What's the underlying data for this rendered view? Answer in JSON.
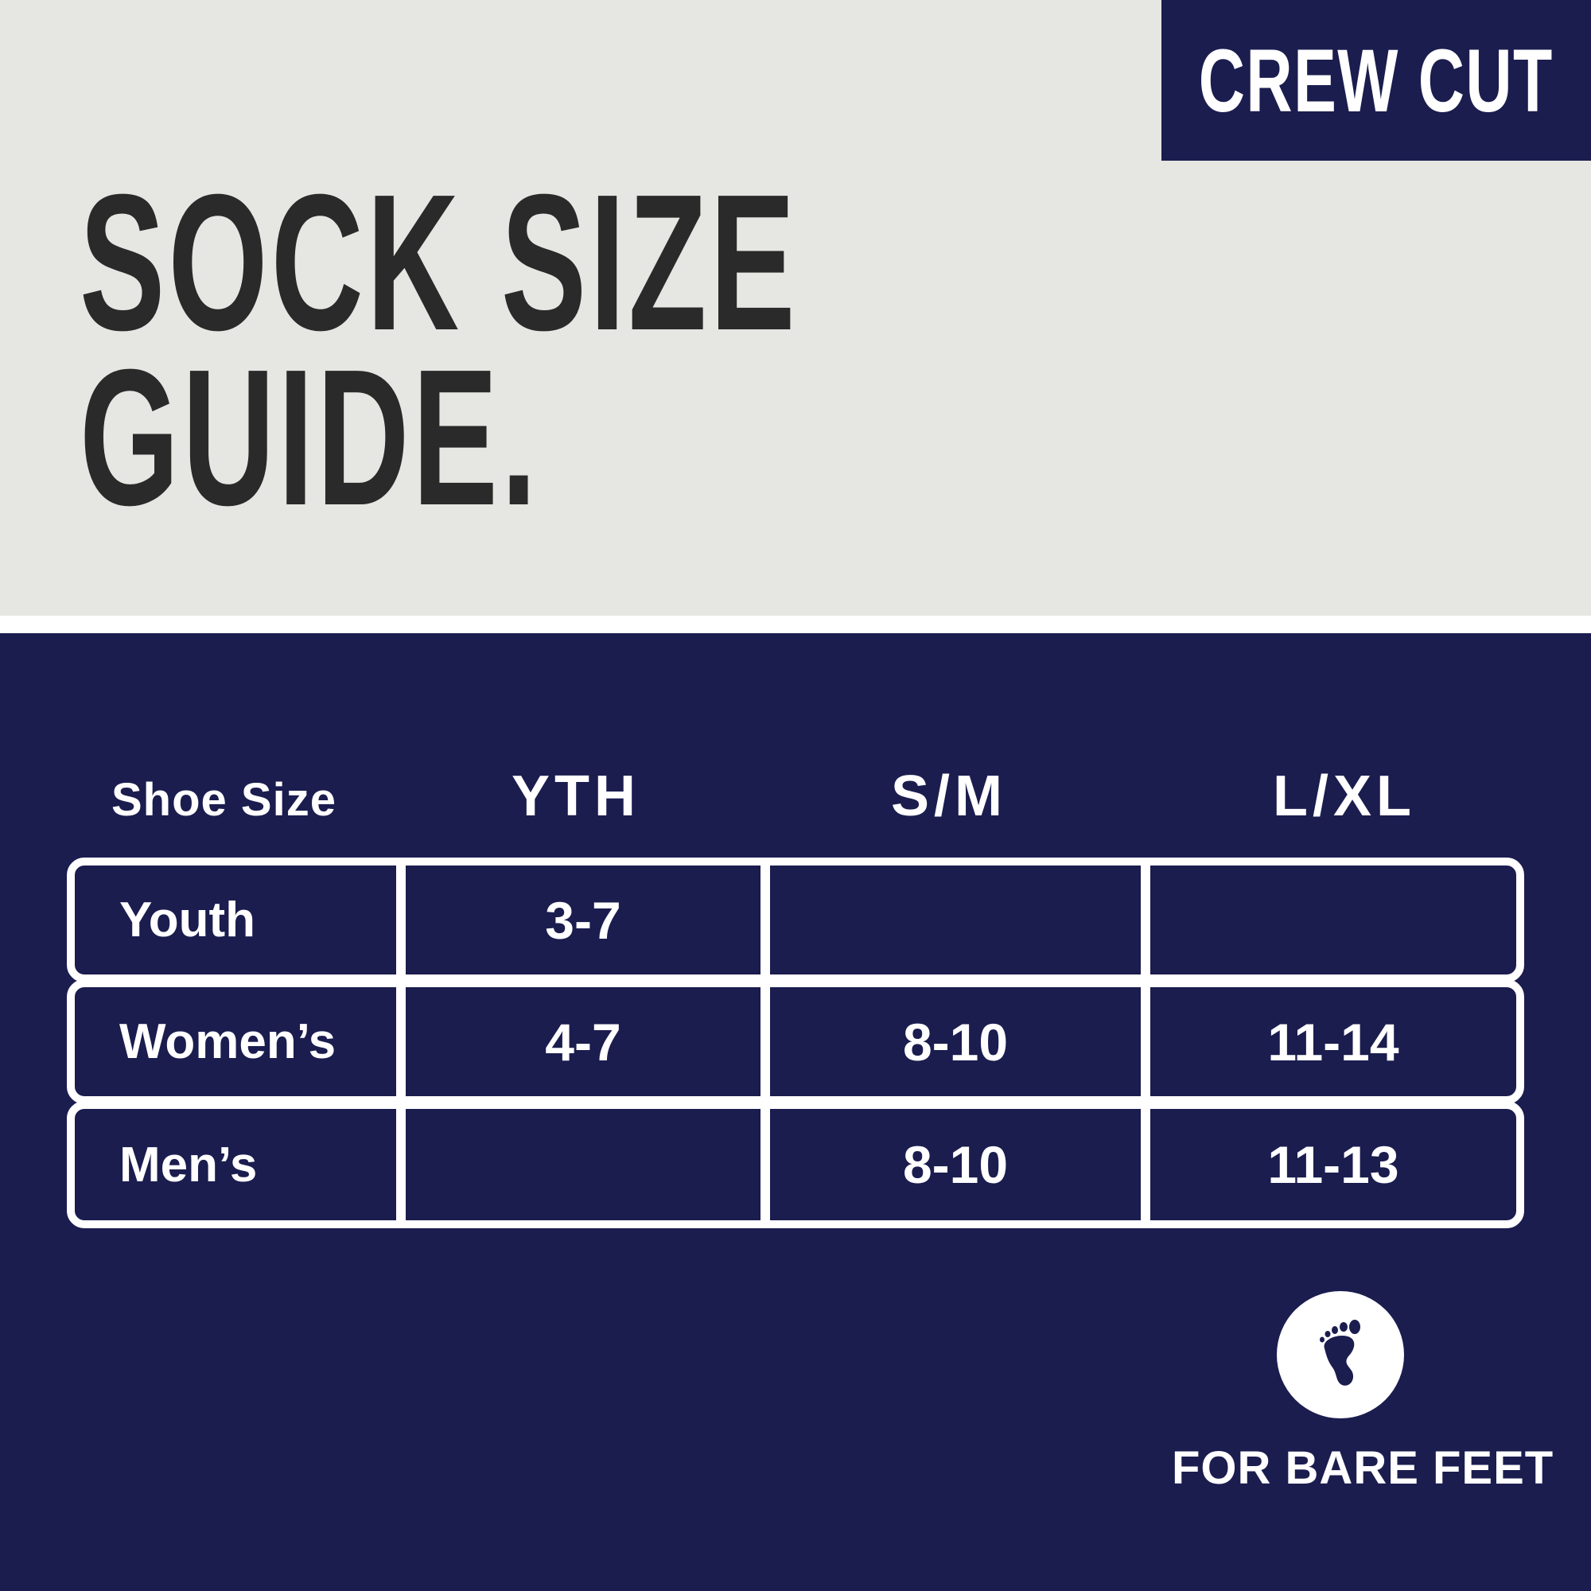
{
  "badge": "CREW CUT",
  "title": {
    "line1": "SOCK SIZE",
    "line2": "GUIDE."
  },
  "table": {
    "headers": [
      "Shoe Size",
      "YTH",
      "S/M",
      "L/XL"
    ],
    "rows": [
      {
        "label": "Youth",
        "values": [
          "3-7",
          "",
          ""
        ]
      },
      {
        "label": "Women’s",
        "values": [
          "4-7",
          "8-10",
          "11-14"
        ]
      },
      {
        "label": "Men’s",
        "values": [
          "",
          "8-10",
          "11-13"
        ]
      }
    ]
  },
  "footnote": {
    "icon": "footprint-icon",
    "text": "FOR BARE FEET"
  },
  "colors": {
    "navy": "#1b1d4f",
    "gray": "#e6e6e3",
    "title": "#2a2a2a"
  }
}
